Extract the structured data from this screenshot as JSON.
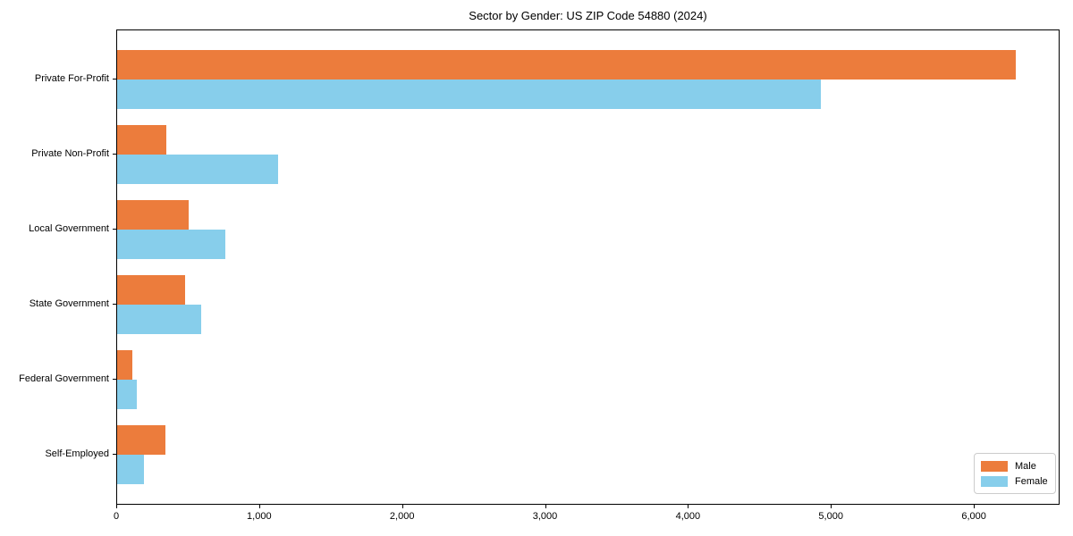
{
  "chart_data": {
    "type": "bar",
    "orientation": "horizontal",
    "title": "Sector by Gender: US ZIP Code 54880 (2024)",
    "categories": [
      "Private For-Profit",
      "Private Non-Profit",
      "Local Government",
      "State Government",
      "Federal Government",
      "Self-Employed"
    ],
    "series": [
      {
        "name": "Male",
        "color": "#EC7C3C",
        "values": [
          6290,
          345,
          500,
          475,
          105,
          340
        ]
      },
      {
        "name": "Female",
        "color": "#87CEEB",
        "values": [
          4925,
          1125,
          755,
          590,
          140,
          190
        ]
      }
    ],
    "xlim": [
      0,
      6600
    ],
    "x_ticks": [
      0,
      1000,
      2000,
      3000,
      4000,
      5000,
      6000
    ],
    "x_tick_labels": [
      "0",
      "1,000",
      "2,000",
      "3,000",
      "4,000",
      "5,000",
      "6,000"
    ],
    "xlabel": "",
    "ylabel": "",
    "grid": false,
    "legend_position": "lower right",
    "spine_color": "#000000",
    "background_color": "#ffffff"
  }
}
